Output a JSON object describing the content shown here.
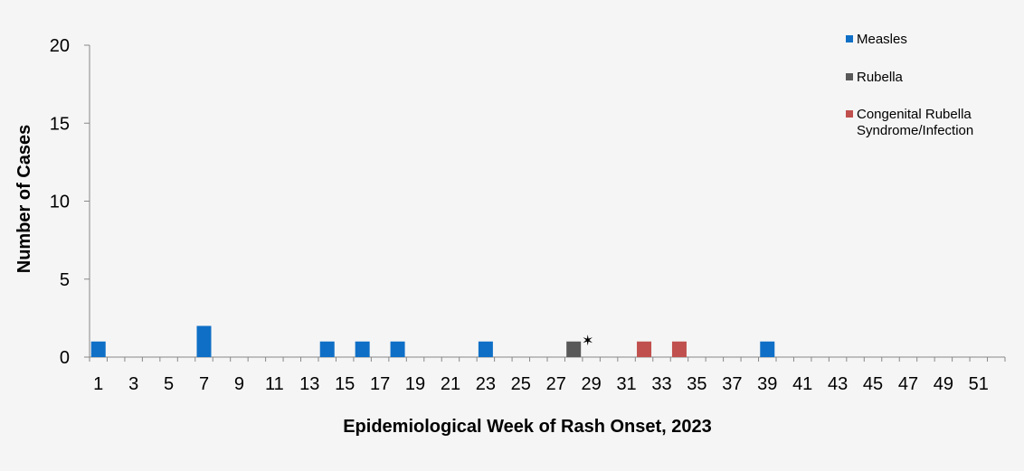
{
  "chart_data": {
    "type": "bar",
    "title": "",
    "xlabel": "Epidemiological Week of Rash Onset, 2023",
    "ylabel": "Number of Cases",
    "x_range": [
      1,
      52
    ],
    "x_tick_labels": [
      "1",
      "3",
      "5",
      "7",
      "9",
      "11",
      "13",
      "15",
      "17",
      "19",
      "21",
      "23",
      "25",
      "27",
      "29",
      "31",
      "33",
      "35",
      "37",
      "39",
      "41",
      "43",
      "45",
      "47",
      "49",
      "51"
    ],
    "ylim": [
      0,
      20
    ],
    "y_ticks": [
      0,
      5,
      10,
      15,
      20
    ],
    "grid": false,
    "legend_position": "top-right",
    "series": [
      {
        "name": "Measles",
        "color": "#0f6fc6",
        "points": [
          {
            "week": 1,
            "value": 1
          },
          {
            "week": 7,
            "value": 2
          },
          {
            "week": 14,
            "value": 1
          },
          {
            "week": 16,
            "value": 1
          },
          {
            "week": 18,
            "value": 1
          },
          {
            "week": 23,
            "value": 1
          },
          {
            "week": 39,
            "value": 1
          }
        ]
      },
      {
        "name": "Rubella",
        "color": "#595959",
        "points": [
          {
            "week": 28,
            "value": 1
          }
        ]
      },
      {
        "name": "Congenital Rubella Syndrome/Infection",
        "legend_lines": [
          "Congenital Rubella",
          "Syndrome/Infection"
        ],
        "color": "#c0504d",
        "points": [
          {
            "week": 32,
            "value": 1
          },
          {
            "week": 34,
            "value": 1
          }
        ]
      }
    ],
    "annotations": [
      {
        "text": "✶",
        "week": 29,
        "value": 1
      }
    ]
  }
}
